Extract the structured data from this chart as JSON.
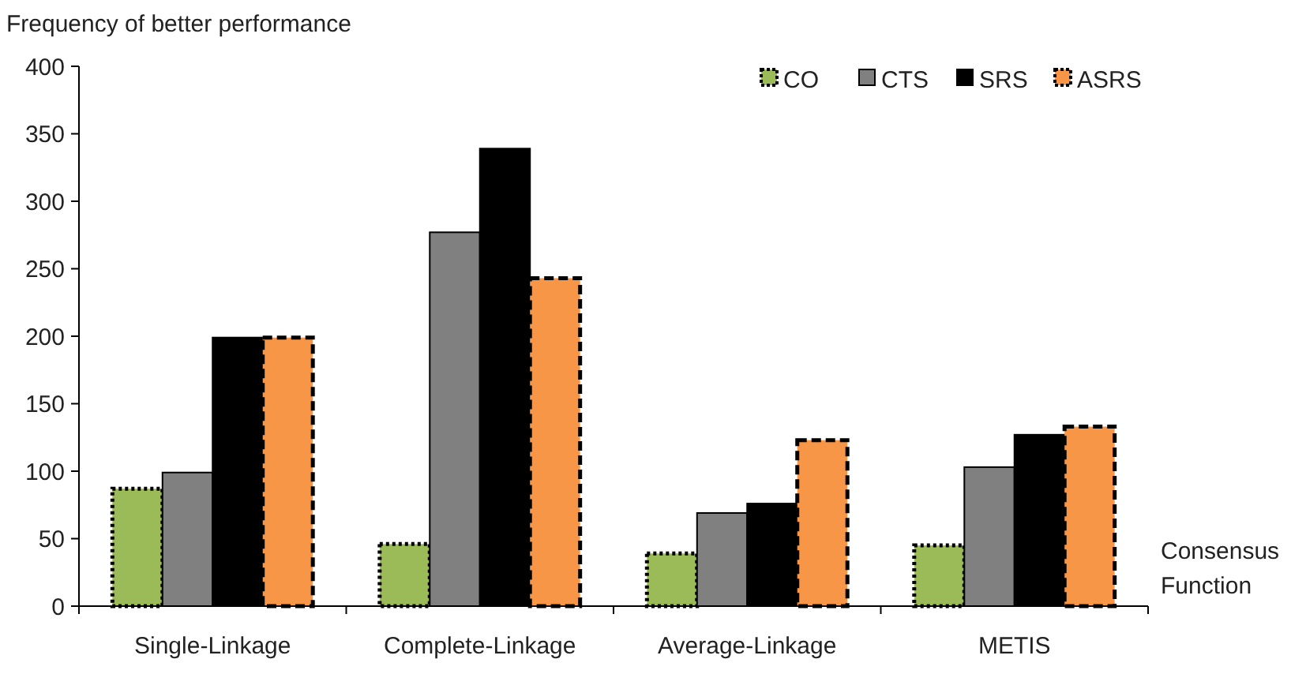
{
  "chart_data": {
    "type": "bar",
    "ylabel": "Frequency of better performance",
    "xlabel": "Consensus Function",
    "categories": [
      "Single-Linkage",
      "Complete-Linkage",
      "Average-Linkage",
      "METIS"
    ],
    "series": [
      {
        "name": "CO",
        "color": "#9bbb59",
        "values": [
          87,
          46,
          39,
          45
        ],
        "line_style": "dotted"
      },
      {
        "name": "CTS",
        "color": "#808080",
        "values": [
          99,
          277,
          69,
          103
        ],
        "line_style": "solid"
      },
      {
        "name": "SRS",
        "color": "#000000",
        "values": [
          199,
          339,
          76,
          127
        ],
        "line_style": "solid"
      },
      {
        "name": "ASRS",
        "color": "#f79646",
        "values": [
          199,
          243,
          123,
          133
        ],
        "line_style": "dashed"
      }
    ],
    "ylim": [
      0,
      400
    ],
    "yticks": [
      0,
      50,
      100,
      150,
      200,
      250,
      300,
      350,
      400
    ],
    "grid": false,
    "legend": "top right"
  }
}
